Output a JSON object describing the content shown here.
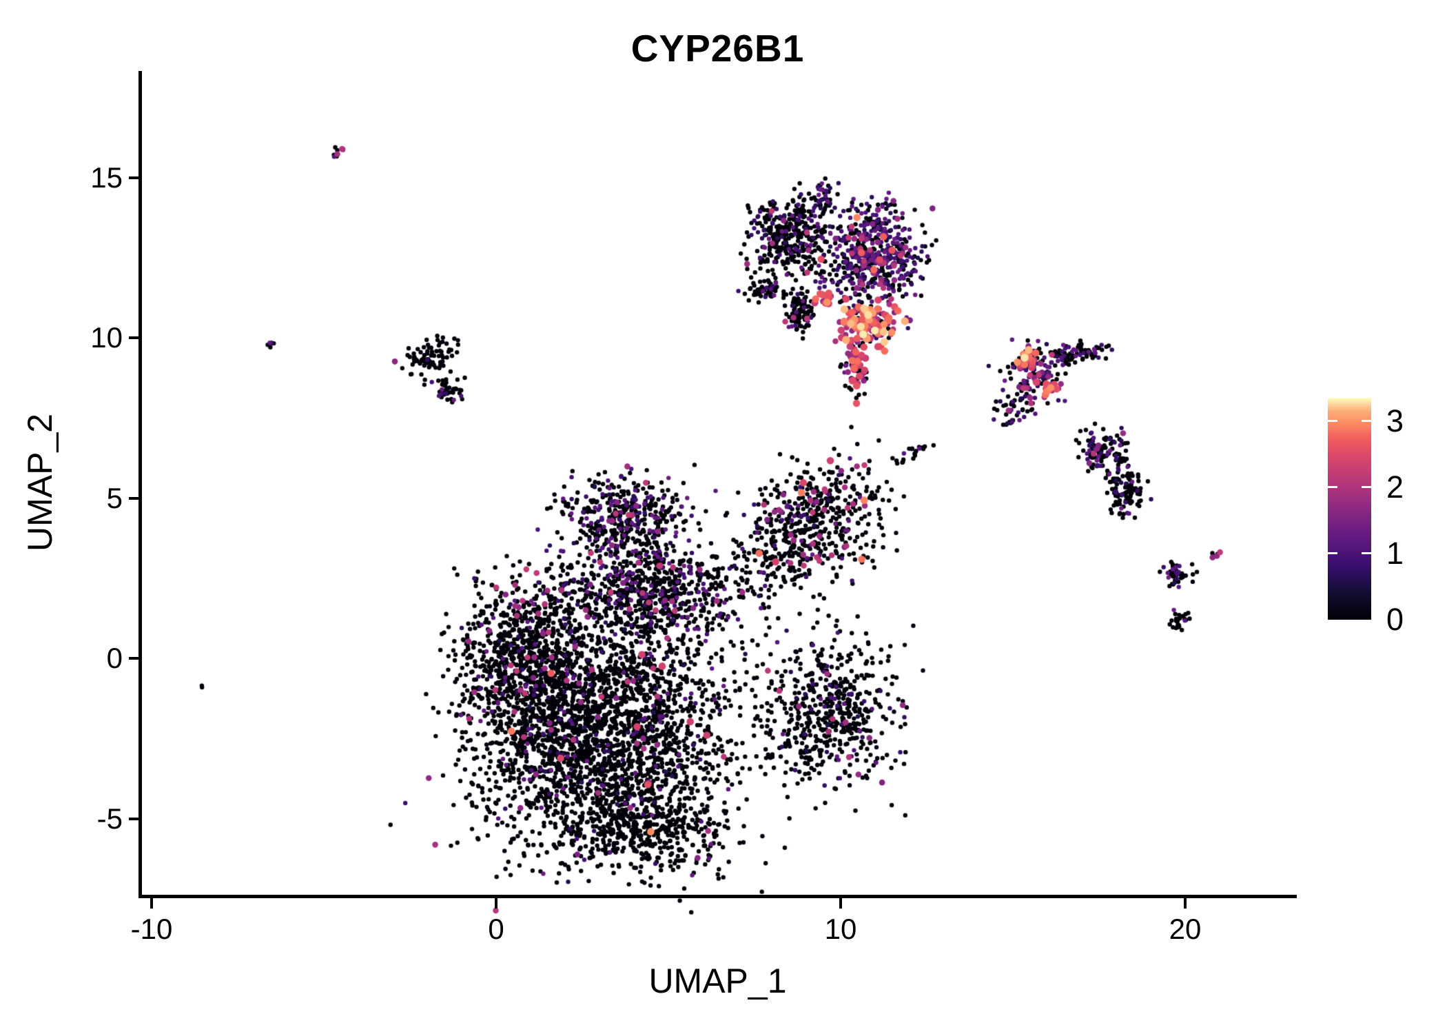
{
  "title": "CYP26B1",
  "axes": {
    "x": {
      "label": "UMAP_1",
      "ticks": [
        -10,
        0,
        10,
        20
      ],
      "range": [
        -10.3,
        23.2
      ]
    },
    "y": {
      "label": "UMAP_2",
      "ticks": [
        15,
        10,
        5,
        0,
        -5
      ],
      "range": [
        -7.4,
        18.3
      ]
    }
  },
  "legend": {
    "ticks": [
      3,
      2,
      1,
      0
    ],
    "vmin": 0,
    "vmax": 3.35,
    "colormap": "magma"
  },
  "colors": {
    "background": "#ffffff",
    "axis": "#000000",
    "text": "#000000",
    "magma_stops": [
      [
        0.0,
        "#000004"
      ],
      [
        0.13,
        "#140e36"
      ],
      [
        0.25,
        "#3b0f70"
      ],
      [
        0.38,
        "#641a80"
      ],
      [
        0.5,
        "#8c2981"
      ],
      [
        0.62,
        "#b73779"
      ],
      [
        0.75,
        "#de4968"
      ],
      [
        0.82,
        "#f1605d"
      ],
      [
        0.88,
        "#fb8861"
      ],
      [
        0.94,
        "#feae77"
      ],
      [
        1.0,
        "#fcfdbf"
      ]
    ]
  },
  "chart_data": {
    "type": "scatter",
    "title": "CYP26B1",
    "xlabel": "UMAP_1",
    "ylabel": "UMAP_2",
    "x_ticks": [
      -10,
      0,
      10,
      20
    ],
    "y_ticks": [
      15,
      10,
      5,
      0,
      -5
    ],
    "xlim": [
      -10.3,
      23.2
    ],
    "ylim": [
      -7.4,
      18.3
    ],
    "grid": false,
    "legend_position": "right",
    "colorbar": {
      "label_values": [
        3,
        2,
        1,
        0
      ],
      "vmin": 0,
      "vmax": 3.35,
      "colormap": "magma"
    },
    "value_classes": {
      "zero": [
        0,
        0.08
      ],
      "low": [
        0.55,
        1.35
      ],
      "mid": [
        1.5,
        2.2
      ],
      "high": [
        2.25,
        3.0
      ],
      "top": [
        3.0,
        3.35
      ]
    },
    "clusters": [
      {
        "name": "central-core",
        "x": 3.0,
        "y": -2.3,
        "rx": 3.8,
        "ry": 3.7,
        "n": 2600,
        "angle": 0,
        "mix": [
          0.93,
          0.052,
          0.015,
          0.003,
          0
        ]
      },
      {
        "name": "central-left",
        "x": 0.8,
        "y": 0.1,
        "rx": 1.8,
        "ry": 2.4,
        "n": 700,
        "angle": 0,
        "mix": [
          0.9,
          0.06,
          0.04,
          0,
          0
        ]
      },
      {
        "name": "central-upper-band",
        "x": 4.6,
        "y": 2.0,
        "rx": 3.0,
        "ry": 1.3,
        "n": 700,
        "angle": 0,
        "mix": [
          0.78,
          0.19,
          0.03,
          0,
          0
        ]
      },
      {
        "name": "central-top-dome",
        "x": 3.8,
        "y": 4.3,
        "rx": 2.0,
        "ry": 1.4,
        "n": 450,
        "angle": 0,
        "mix": [
          0.76,
          0.21,
          0.03,
          0,
          0
        ]
      },
      {
        "name": "central-right-arm",
        "x": 9.2,
        "y": 4.2,
        "rx": 2.2,
        "ry": 1.7,
        "n": 550,
        "angle": -30,
        "mix": [
          0.87,
          0.07,
          0.05,
          0.01,
          0
        ]
      },
      {
        "name": "central-lower-right-lobe",
        "x": 9.7,
        "y": -1.6,
        "rx": 1.9,
        "ry": 2.3,
        "n": 550,
        "angle": 0,
        "mix": [
          0.92,
          0.06,
          0.02,
          0,
          0
        ]
      },
      {
        "name": "central-bottom-tail",
        "x": 4.4,
        "y": -5.3,
        "rx": 2.4,
        "ry": 1.3,
        "n": 350,
        "angle": 0,
        "mix": [
          0.96,
          0.03,
          0.01,
          0,
          0
        ]
      },
      {
        "name": "top-cluster-left",
        "x": 8.6,
        "y": 13.2,
        "rx": 1.2,
        "ry": 1.2,
        "n": 350,
        "angle": 0,
        "mix": [
          0.84,
          0.15,
          0.01,
          0,
          0
        ]
      },
      {
        "name": "top-cluster-right",
        "x": 10.9,
        "y": 12.6,
        "rx": 1.4,
        "ry": 1.5,
        "n": 550,
        "angle": 0,
        "mix": [
          0.46,
          0.46,
          0.07,
          0.01,
          0
        ]
      },
      {
        "name": "top-cluster-knob",
        "x": 9.5,
        "y": 14.4,
        "rx": 0.32,
        "ry": 0.56,
        "n": 40,
        "angle": 0,
        "mix": [
          0.6,
          0.4,
          0,
          0,
          0
        ]
      },
      {
        "name": "top-cluster-hotspot",
        "x": 10.8,
        "y": 10.4,
        "rx": 0.85,
        "ry": 0.65,
        "n": 140,
        "angle": 0,
        "mix": [
          0.08,
          0.1,
          0.27,
          0.45,
          0.1
        ]
      },
      {
        "name": "top-cluster-tail",
        "x": 10.4,
        "y": 9.1,
        "rx": 0.36,
        "ry": 0.86,
        "n": 70,
        "angle": 0,
        "mix": [
          0.42,
          0.08,
          0.25,
          0.25,
          0
        ]
      },
      {
        "name": "top-cluster-left-arm",
        "x": 7.8,
        "y": 11.5,
        "rx": 0.76,
        "ry": 0.26,
        "n": 60,
        "angle": -8,
        "mix": [
          0.93,
          0.07,
          0,
          0,
          0
        ]
      },
      {
        "name": "top-cluster-lowerleft",
        "x": 8.8,
        "y": 10.8,
        "rx": 0.44,
        "ry": 0.69,
        "n": 90,
        "angle": 0,
        "mix": [
          0.9,
          0.07,
          0.03,
          0,
          0
        ]
      },
      {
        "name": "top-cluster-orange-patch",
        "x": 9.6,
        "y": 11.2,
        "rx": 0.28,
        "ry": 0.22,
        "n": 15,
        "angle": 0,
        "mix": [
          0,
          0,
          0.35,
          0.65,
          0
        ]
      },
      {
        "name": "right-hot-core",
        "x": 15.4,
        "y": 9.3,
        "rx": 0.32,
        "ry": 0.39,
        "n": 30,
        "angle": 0,
        "mix": [
          0,
          0.05,
          0.15,
          0.62,
          0.18
        ]
      },
      {
        "name": "right-hot-second",
        "x": 16.0,
        "y": 8.4,
        "rx": 0.28,
        "ry": 0.26,
        "n": 18,
        "angle": 0,
        "mix": [
          0,
          0.1,
          0.3,
          0.6,
          0
        ]
      },
      {
        "name": "right-cluster-body",
        "x": 15.6,
        "y": 8.9,
        "rx": 0.9,
        "ry": 0.86,
        "n": 130,
        "angle": 0,
        "mix": [
          0.52,
          0.3,
          0.18,
          0,
          0
        ]
      },
      {
        "name": "right-cluster-arm",
        "x": 16.8,
        "y": 9.5,
        "rx": 1.0,
        "ry": 0.3,
        "n": 80,
        "angle": -12,
        "mix": [
          0.68,
          0.27,
          0.05,
          0,
          0
        ]
      },
      {
        "name": "right-cluster-below",
        "x": 15.0,
        "y": 7.8,
        "rx": 0.6,
        "ry": 0.54,
        "n": 40,
        "angle": 0,
        "mix": [
          0.78,
          0.17,
          0.05,
          0,
          0
        ]
      },
      {
        "name": "midright-s-upper",
        "x": 17.6,
        "y": 6.5,
        "rx": 0.7,
        "ry": 0.65,
        "n": 110,
        "angle": 0,
        "mix": [
          0.7,
          0.25,
          0.05,
          0,
          0
        ]
      },
      {
        "name": "midright-s-lower",
        "x": 18.3,
        "y": 5.2,
        "rx": 0.6,
        "ry": 0.75,
        "n": 110,
        "angle": 0,
        "mix": [
          0.8,
          0.19,
          0.01,
          0,
          0
        ]
      },
      {
        "name": "farright-y-blob",
        "x": 19.8,
        "y": 2.6,
        "rx": 0.5,
        "ry": 0.47,
        "n": 45,
        "angle": 0,
        "mix": [
          0.84,
          0.16,
          0,
          0,
          0
        ]
      },
      {
        "name": "farright-dash",
        "x": 20.9,
        "y": 3.2,
        "rx": 0.24,
        "ry": 0.11,
        "n": 10,
        "angle": -35,
        "mix": [
          0.5,
          0.2,
          0.3,
          0,
          0
        ]
      },
      {
        "name": "farright-bottom",
        "x": 19.8,
        "y": 1.2,
        "rx": 0.3,
        "ry": 0.3,
        "n": 25,
        "angle": 0,
        "mix": [
          0.84,
          0.16,
          0,
          0,
          0
        ]
      },
      {
        "name": "left-small-upper",
        "x": -1.9,
        "y": 9.4,
        "rx": 0.9,
        "ry": 0.47,
        "n": 80,
        "angle": -25,
        "mix": [
          0.95,
          0.02,
          0.03,
          0,
          0
        ]
      },
      {
        "name": "left-small-lower",
        "x": -1.4,
        "y": 8.4,
        "rx": 0.56,
        "ry": 0.34,
        "n": 40,
        "angle": 0,
        "mix": [
          0.9,
          0.1,
          0,
          0,
          0
        ]
      },
      {
        "name": "pair-dash",
        "x": 12.3,
        "y": 6.5,
        "rx": 0.36,
        "ry": 0.15,
        "n": 14,
        "angle": -15,
        "mix": [
          0.95,
          0.05,
          0,
          0,
          0
        ]
      },
      {
        "name": "pair-strays",
        "x": 11.6,
        "y": 6.2,
        "rx": 0.5,
        "ry": 0.3,
        "n": 6,
        "angle": 0,
        "mix": [
          0.95,
          0.05,
          0,
          0,
          0
        ]
      },
      {
        "name": "topleft-dash",
        "x": -4.6,
        "y": 15.8,
        "rx": 0.24,
        "ry": 0.13,
        "n": 10,
        "angle": -30,
        "mix": [
          0.4,
          0.4,
          0.2,
          0,
          0
        ]
      },
      {
        "name": "left-tiny",
        "x": -6.6,
        "y": 9.8,
        "rx": 0.16,
        "ry": 0.13,
        "n": 6,
        "angle": 0,
        "mix": [
          0.7,
          0.3,
          0,
          0,
          0
        ]
      },
      {
        "name": "left-lone-dot",
        "x": -8.5,
        "y": -0.9,
        "rx": 0.05,
        "ry": 0.05,
        "n": 2,
        "angle": 0,
        "mix": [
          1,
          0,
          0,
          0,
          0
        ]
      }
    ]
  }
}
